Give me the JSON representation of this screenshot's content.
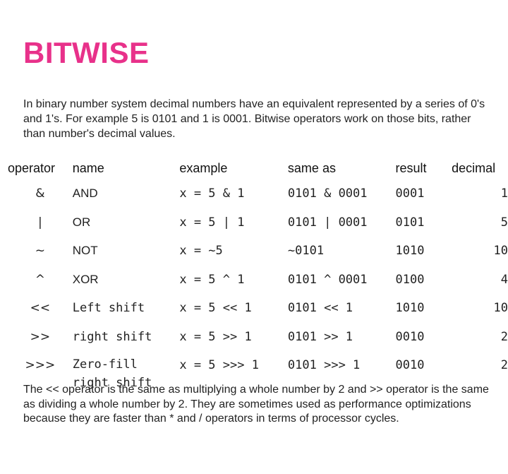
{
  "title": "BITWISE",
  "intro": "In binary number system decimal numbers have an equivalent represented by a series of 0's and 1's. For example 5 is 0101 and 1 is 0001. Bitwise operators work on those bits, rather than number's decimal values.",
  "table": {
    "headers": {
      "operator": "operator",
      "name": "name",
      "example": "example",
      "same_as": "same as",
      "result": "result",
      "decimal": "decimal"
    },
    "rows": [
      {
        "operator": "&",
        "name": "AND",
        "example": "x = 5 & 1",
        "same_as": "0101 & 0001",
        "result": "0001",
        "decimal": "1"
      },
      {
        "operator": "|",
        "name": "OR",
        "example": "x = 5 | 1",
        "same_as": "0101 | 0001",
        "result": "0101",
        "decimal": "5"
      },
      {
        "operator": "~",
        "name": "NOT",
        "example": "x = ~5",
        "same_as": "~0101",
        "result": "1010",
        "decimal": "10"
      },
      {
        "operator": "^",
        "name": "XOR",
        "example": "x = 5 ^ 1",
        "same_as": "0101 ^ 0001",
        "result": "0100",
        "decimal": "4"
      },
      {
        "operator": "<<",
        "name": "Left shift",
        "example": "x = 5 << 1",
        "same_as": "0101 << 1",
        "result": "1010",
        "decimal": "10"
      },
      {
        "operator": ">>",
        "name": "right shift",
        "example": "x = 5 >> 1",
        "same_as": "0101 >> 1",
        "result": "0010",
        "decimal": "2"
      },
      {
        "operator": ">>>",
        "name": "Zero-fill right shift",
        "example": "x = 5 >>> 1",
        "same_as": "0101 >>> 1",
        "result": "0010",
        "decimal": "2"
      }
    ]
  },
  "outro": "The << operator is the same as multiplying a whole number by 2  and >> operator is the same as dividing a whole number by 2.  They are sometimes used as performance optimizations because they are faster than * and / operators in terms of processor cycles.",
  "colors": {
    "title": "#e8318a",
    "text": "#222222",
    "background": "#ffffff"
  }
}
